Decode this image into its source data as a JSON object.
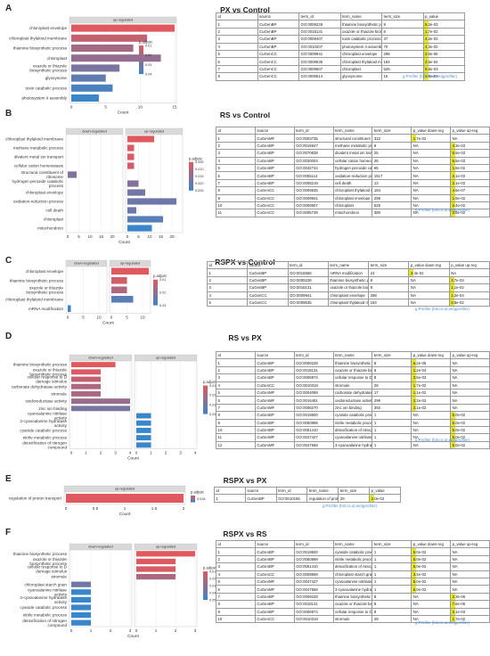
{
  "credit_text": "g:Profiler (biit.cs.ut.ee/gprofiler)",
  "legend_title": "p.adjust",
  "colors": {
    "low": "#e0595f",
    "high": "#3a86c8",
    "highlight": "#e6e62e",
    "strip": "#d9d9d9",
    "grid": "#e5e5e5",
    "credit": "#4a90d9"
  },
  "panels": [
    {
      "id": "A",
      "title": "PX vs Control",
      "table": {
        "columns": [
          "id",
          "source",
          "term_id",
          "term_name",
          "term_size",
          "p_value"
        ],
        "rows": [
          [
            "1",
            "CuGenBP",
            "GO:0009228",
            "thiamine biosynthetic process",
            "8",
            "6.2e-03"
          ],
          [
            "2",
            "CuGenBP",
            "GO:0018131",
            "oxazole or thiazole biosynthetic process",
            "8",
            "1.7e-02"
          ],
          [
            "3",
            "CuGenBP",
            "GO:0009407",
            "toxin catabolic process",
            "37",
            "4.2e-02"
          ],
          [
            "4",
            "CuGenBP",
            "GO:0010207",
            "photosystem II assembly",
            "70",
            "4.3e-02"
          ],
          [
            "5",
            "CuGenCC",
            "GO:0009941",
            "chloroplast envelope",
            "298",
            "2.0e-06"
          ],
          [
            "6",
            "CuGenCC",
            "GO:0009535",
            "chloroplast thylakoid membrane",
            "184",
            "2.5e-04"
          ],
          [
            "7",
            "CuGenCC",
            "GO:0009507",
            "chloroplast",
            "525",
            "9.5e-03"
          ],
          [
            "8",
            "CuGenCC",
            "GO:0009514",
            "glyoxysome",
            "15",
            "1.8e-02"
          ]
        ]
      },
      "chart_data": {
        "type": "bar",
        "facets": [
          "up-regulated"
        ],
        "categories": [
          "chloroplast envelope",
          "chloroplast thylakoid membrane",
          "thiamine biosynthetic process",
          "chloroplast",
          "oxazole or thiazole\nbiosynthetic process",
          "glyoxysome",
          "toxin catabolic process",
          "photosystem II assembly"
        ],
        "series": [
          {
            "values": [
              15,
              11,
              9,
              13,
              7,
              5,
              6,
              4
            ],
            "padjust": [
              0.005,
              0.012,
              0.02,
              0.024,
              0.03,
              0.036,
              0.042,
              0.046
            ]
          }
        ],
        "xlim": [
          0,
          15
        ],
        "ticks": [
          0,
          5,
          10,
          15
        ],
        "xlabel": "Count",
        "legend_ticks": [
          "0.01",
          "0.02",
          "0.03",
          "0.04"
        ]
      }
    },
    {
      "id": "B",
      "title": "RS vs Control",
      "table": {
        "columns": [
          "id",
          "source",
          "term_id",
          "term_name",
          "term_size",
          "p_value down-reg",
          "p_value up-reg"
        ],
        "rows": [
          [
            "1",
            "CuGenMF",
            "GO:0003735",
            "structural constituent of ribosome",
            "322",
            "1.7e-02",
            "NA"
          ],
          [
            "2",
            "CuGenBP",
            "GO:0015947",
            "methane metabolic process",
            "8",
            "NA",
            "4.3e-03"
          ],
          [
            "3",
            "CuGenBP",
            "GO:0070838",
            "divalent metal ion transport",
            "25",
            "NA",
            "5.5e-03"
          ],
          [
            "4",
            "CuGenBP",
            "GO:0030003",
            "cellular cation homeostasis",
            "26",
            "NA",
            "6.5e-03"
          ],
          [
            "5",
            "CuGenBP",
            "GO:0042744",
            "hydrogen peroxide catabolic process",
            "65",
            "NA",
            "1.8e-02"
          ],
          [
            "6",
            "CuGenBP",
            "GO:0055114",
            "oxidation-reduction process",
            "1517",
            "NA",
            "2.1e-02"
          ],
          [
            "7",
            "CuGenBP",
            "GO:0008219",
            "cell death",
            "13",
            "NA",
            "2.1e-02"
          ],
          [
            "8",
            "CuGenCC",
            "GO:0009535",
            "chloroplast thylakoid membrane",
            "184",
            "NA",
            "4.6e-07"
          ],
          [
            "9",
            "CuGenCC",
            "GO:0009941",
            "chloroplast envelope",
            "298",
            "NA",
            "1.9e-02"
          ],
          [
            "10",
            "CuGenCC",
            "GO:0009507",
            "chloroplast",
            "525",
            "NA",
            "2.4e-02"
          ],
          [
            "11",
            "CuGenCC",
            "GO:0005739",
            "mitochondrion",
            "380",
            "NA",
            "2.8e-02"
          ]
        ]
      },
      "chart_data": {
        "type": "bar",
        "facets": [
          "down-regulated",
          "up-regulated"
        ],
        "categories": [
          "chloroplast thylakoid membrane",
          "methane metabolic process",
          "divalent metal ion transport",
          "cellular cation homeostasis",
          "structural constituent of\nribosome",
          "hydrogen peroxide catabolic\nprocess",
          "chloroplast envelope",
          "oxidation-reduction process",
          "cell death",
          "chloroplast",
          "mitochondrion"
        ],
        "series": [
          {
            "values": [
              0,
              0,
              0,
              0,
              4,
              0,
              0,
              0,
              0,
              0,
              0
            ],
            "padjust": [
              0,
              0,
              0,
              0,
              0.018,
              0,
              0,
              0,
              0,
              0,
              0
            ]
          },
          {
            "values": [
              12,
              3,
              3,
              3,
              0,
              5,
              8,
              22,
              4,
              16,
              11
            ],
            "padjust": [
              0.005,
              0.006,
              0.006,
              0.007,
              0,
              0.018,
              0.02,
              0.021,
              0.021,
              0.024,
              0.028
            ]
          }
        ],
        "xlim": [
          0,
          24
        ],
        "ticks": [
          0,
          5,
          10,
          15,
          20
        ],
        "xlabel": "Count",
        "legend_ticks": [
          "0.005",
          "0.010",
          "0.015",
          "0.020",
          "0.025"
        ]
      }
    },
    {
      "id": "C",
      "title": "RSPX vs Control",
      "table": {
        "columns": [
          "id",
          "source",
          "term_id",
          "term_name",
          "term_size",
          "p_value down-reg",
          "p_value up-reg"
        ],
        "rows": [
          [
            "1",
            "CuGenBP",
            "GO:0016556",
            "mRNA modification",
            "24",
            "3.4e-02",
            "NA"
          ],
          [
            "2",
            "CuGenBP",
            "GO:0009228",
            "thiamine biosynthetic process",
            "8",
            "NA",
            "3.7e-03"
          ],
          [
            "3",
            "CuGenBP",
            "GO:0018131",
            "oxazole or thiazole biosynthetic process",
            "8",
            "NA",
            "1.1e-02"
          ],
          [
            "4",
            "CuGenCC",
            "GO:0009941",
            "chloroplast envelope",
            "298",
            "NA",
            "1.3e-04"
          ],
          [
            "5",
            "CuGenCC",
            "GO:0009535",
            "chloroplast thylakoid membrane",
            "184",
            "NA",
            "2.8e-02"
          ]
        ]
      },
      "chart_data": {
        "type": "bar",
        "facets": [
          "down-regulated",
          "up-regulated"
        ],
        "categories": [
          "chloroplast envelope",
          "thiamine biosynthetic process",
          "oxazole or thiazole\nbiosynthetic process",
          "chloroplast thylakoid membrane",
          "mRNA modification"
        ],
        "series": [
          {
            "values": [
              0,
              0,
              0,
              0,
              1
            ],
            "padjust": [
              0,
              0,
              0,
              0,
              0.034
            ]
          },
          {
            "values": [
              12,
              5,
              5,
              7,
              0
            ],
            "padjust": [
              0.001,
              0.004,
              0.011,
              0.028,
              0
            ]
          }
        ],
        "xlim": [
          0,
          12
        ],
        "ticks": [
          0,
          5,
          10
        ],
        "xlabel": "Count",
        "legend_ticks": [
          "0.01",
          "0.02",
          "0.03"
        ]
      }
    },
    {
      "id": "D",
      "title": "RS vs PX",
      "table": {
        "columns": [
          "id",
          "source",
          "term_id",
          "term_name",
          "term_size",
          "p_value down-reg",
          "p_value up-reg"
        ],
        "rows": [
          [
            "1",
            "CuGenBP",
            "GO:0009228",
            "thiamine biosynthetic process",
            "8",
            "6.2e-06",
            "NA"
          ],
          [
            "2",
            "CuGenBP",
            "GO:0018131",
            "oxazole or thiazole biosynthetic process",
            "8",
            "1.2e-04",
            "NA"
          ],
          [
            "3",
            "CuGenBP",
            "GO:0006974",
            "cellular response to D damage stimulus",
            "8",
            "3.5e-03",
            "NA"
          ],
          [
            "4",
            "CuGenCC",
            "GO:0010319",
            "stromule",
            "28",
            "1.7e-02",
            "NA"
          ],
          [
            "5",
            "CuGenMF",
            "GO:0004089",
            "carbonate dehydratase activity",
            "17",
            "1.1e-02",
            "NA"
          ],
          [
            "6",
            "CuGenMF",
            "GO:0016491",
            "oxidoreductase activity",
            "295",
            "2.2e-02",
            "NA"
          ],
          [
            "7",
            "CuGenMF",
            "GO:0008270",
            "zinc ion binding",
            "392",
            "3.1e-02",
            "NA"
          ],
          [
            "8",
            "CuGenBP",
            "GO:0019500",
            "cyanide catabolic process",
            "1",
            "NA",
            "5.0e-02"
          ],
          [
            "9",
            "CuGenBP",
            "GO:0050898",
            "nitrile metabolic process",
            "1",
            "NA",
            "5.0e-02"
          ],
          [
            "10",
            "CuGenBP",
            "GO:0051410",
            "detoxification of nitrogen compound",
            "1",
            "NA",
            "5.0e-02"
          ],
          [
            "11",
            "CuGenMF",
            "GO:0047427",
            "cyanoalanine nitrilase activity",
            "1",
            "NA",
            "5.0e-02"
          ],
          [
            "12",
            "CuGenMF",
            "GO:0047558",
            "3-cyanoalanine hydratase activity",
            "1",
            "NA",
            "5.0e-02"
          ]
        ]
      },
      "chart_data": {
        "type": "bar",
        "facets": [
          "down-regulated",
          "up-regulated"
        ],
        "categories": [
          "thiamine biosynthetic process",
          "oxazole or thiazole\nbiosynthetic process",
          "cellular response to D\ndamage stimulus",
          "carbonate dehydratase activity",
          "stromule",
          "oxidoreductase activity",
          "zinc ion binding",
          "cyanoalanine nitrilase\nactivity",
          "3-cyanoalanine hydratase\nactivity",
          "cyanide catabolic process",
          "nitrile metabolic process",
          "detoxification of nitrogen\ncompound"
        ],
        "series": [
          {
            "values": [
              3,
              2,
              2,
              2,
              2,
              4,
              4,
              0,
              0,
              0,
              0,
              0
            ],
            "padjust": [
              0.001,
              0.003,
              0.01,
              0.016,
              0.017,
              0.022,
              0.031,
              0,
              0,
              0,
              0,
              0
            ]
          },
          {
            "values": [
              0,
              0,
              0,
              0,
              0,
              0,
              0,
              1,
              1,
              1,
              1,
              1
            ],
            "padjust": [
              0,
              0,
              0,
              0,
              0,
              0,
              0,
              0.05,
              0.05,
              0.05,
              0.05,
              0.05
            ]
          }
        ],
        "xlim": [
          0,
          4
        ],
        "ticks": [
          0,
          1,
          2,
          3,
          4
        ],
        "xlabel": "Count",
        "legend_ticks": [
          "0.01",
          "0.02",
          "0.03",
          "0.04"
        ]
      }
    },
    {
      "id": "E",
      "title": "RSPX vs PX",
      "table": {
        "columns": [
          "id",
          "source",
          "term_id",
          "term_name",
          "term_size",
          "p_value"
        ],
        "rows": [
          [
            "1",
            "CuGenBP",
            "GO:0010155",
            "regulation of proton transport",
            "29",
            "2.0e-02"
          ]
        ]
      },
      "chart_data": {
        "type": "bar",
        "facets": [
          "up-regulated"
        ],
        "categories": [
          "regulation of proton transport"
        ],
        "series": [
          {
            "values": [
              2
            ],
            "padjust": [
              0.02
            ]
          }
        ],
        "xlim": [
          0,
          2
        ],
        "ticks": [
          0.0,
          0.5,
          1.0,
          1.5,
          2.0
        ],
        "xlabel": "Count",
        "legend_ticks": [
          "0.018"
        ]
      }
    },
    {
      "id": "F",
      "title": "RSPX vs RS",
      "table": {
        "columns": [
          "id",
          "source",
          "term_id",
          "term_name",
          "term_size",
          "p_value down-reg",
          "p_value up-reg"
        ],
        "rows": [
          [
            "1",
            "CuGenBP",
            "GO:0019500",
            "cyanide catabolic process",
            "1",
            "5.0e-02",
            "NA"
          ],
          [
            "2",
            "CuGenBP",
            "GO:0050898",
            "nitrile metabolic process",
            "1",
            "5.0e-02",
            "NA"
          ],
          [
            "3",
            "CuGenBP",
            "GO:0051410",
            "detoxification of nitrogen compound",
            "1",
            "5.0e-02",
            "NA"
          ],
          [
            "4",
            "CuGenCC",
            "GO:0009569",
            "chloroplast starch grain",
            "1",
            "3.4e-02",
            "NA"
          ],
          [
            "5",
            "CuGenMF",
            "GO:0047427",
            "cyanoalanine nitrilase activity",
            "1",
            "5.0e-02",
            "NA"
          ],
          [
            "6",
            "CuGenMF",
            "GO:0047558",
            "3-cyanoalanine hydratase activity",
            "1",
            "5.0e-02",
            "NA"
          ],
          [
            "7",
            "CuGenBP",
            "GO:0009228",
            "thiamine biosynthetic process",
            "8",
            "NA",
            "2.3e-06"
          ],
          [
            "8",
            "CuGenBP",
            "GO:0018131",
            "oxazole or thiazole biosynthetic process",
            "8",
            "NA",
            "7.6e-05"
          ],
          [
            "9",
            "CuGenBP",
            "GO:0006974",
            "cellular response to D damage stimulus",
            "8",
            "NA",
            "2.1e-03"
          ],
          [
            "10",
            "CuGenCC",
            "GO:0010319",
            "stromule",
            "28",
            "NA",
            "1.7e-02"
          ]
        ]
      },
      "chart_data": {
        "type": "bar",
        "facets": [
          "down-regulated",
          "up-regulated"
        ],
        "categories": [
          "thiamine biosynthetic process",
          "oxazole or thiazole\nbiosynthetic process",
          "cellular response to D\ndamage stimulus",
          "stromule",
          "chloroplast starch grain",
          "cyanoalanine nitrilase\nactivity",
          "3-cyanoalanine hydratase\nactivity",
          "cyanide catabolic process",
          "nitrile metabolic process",
          "detoxification of nitrogen\ncompound"
        ],
        "series": [
          {
            "values": [
              0,
              0,
              0,
              0,
              1,
              1,
              1,
              1,
              1,
              1
            ],
            "padjust": [
              0,
              0,
              0,
              0,
              0.034,
              0.05,
              0.05,
              0.05,
              0.05,
              0.05
            ]
          },
          {
            "values": [
              3,
              2,
              2,
              2,
              0,
              0,
              0,
              0,
              0,
              0
            ],
            "padjust": [
              0.001,
              0.002,
              0.004,
              0.017,
              0,
              0,
              0,
              0,
              0,
              0
            ]
          }
        ],
        "xlim": [
          0,
          3
        ],
        "ticks": [
          0,
          1,
          2,
          3
        ],
        "xlabel": "Count",
        "legend_ticks": [
          "0.01",
          "0.02",
          "0.03",
          "0.04",
          "0.05"
        ]
      }
    }
  ]
}
